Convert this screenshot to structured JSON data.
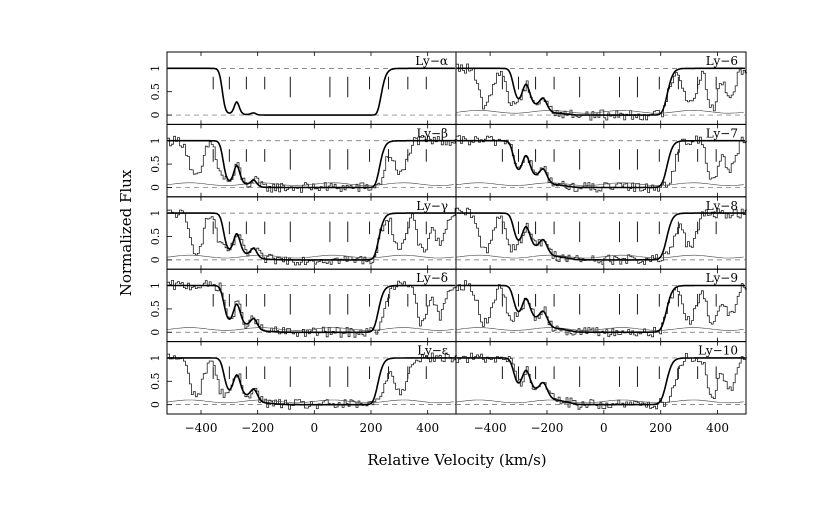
{
  "chart_data": {
    "type": "line",
    "figure_type": "absorption-line stack",
    "xlabel": "Relative Velocity (km/s)",
    "ylabel": "Normalized Flux",
    "xlim": [
      -520,
      500
    ],
    "ylim": [
      -0.2,
      1.35
    ],
    "x_ticks": [
      -400,
      -200,
      0,
      200,
      400
    ],
    "x_tick_labels": [
      "−400",
      "−200",
      "0",
      "200",
      "400"
    ],
    "y_ticks": [
      0,
      0.5,
      1
    ],
    "y_tick_labels": [
      "0",
      "0.5",
      "1"
    ],
    "component_velocities": [
      -357,
      -300,
      -240,
      -175,
      -85,
      55,
      118,
      195,
      262,
      330,
      395
    ],
    "panels": [
      {
        "label": "Ly−α",
        "column": 0,
        "row": 0,
        "depth": 3.5,
        "data_quality": "clean"
      },
      {
        "label": "Ly−β",
        "column": 0,
        "row": 1,
        "depth": 2.1,
        "data_quality": "noisy"
      },
      {
        "label": "Ly−γ",
        "column": 0,
        "row": 2,
        "depth": 1.6,
        "data_quality": "noisy"
      },
      {
        "label": "Ly−δ",
        "column": 0,
        "row": 3,
        "depth": 1.4,
        "data_quality": "noisy"
      },
      {
        "label": "Ly−ε",
        "column": 0,
        "row": 4,
        "depth": 1.25,
        "data_quality": "noisy"
      },
      {
        "label": "Ly−6",
        "column": 1,
        "row": 0,
        "depth": 1.15,
        "data_quality": "noisy"
      },
      {
        "label": "Ly−7",
        "column": 1,
        "row": 1,
        "depth": 1.05,
        "data_quality": "noisy"
      },
      {
        "label": "Ly−8",
        "column": 1,
        "row": 2,
        "depth": 0.95,
        "data_quality": "noisy"
      },
      {
        "label": "Ly−9",
        "column": 1,
        "row": 3,
        "depth": 0.9,
        "data_quality": "noisy"
      },
      {
        "label": "Ly−10",
        "column": 1,
        "row": 4,
        "depth": 0.85,
        "data_quality": "noisy"
      }
    ]
  }
}
